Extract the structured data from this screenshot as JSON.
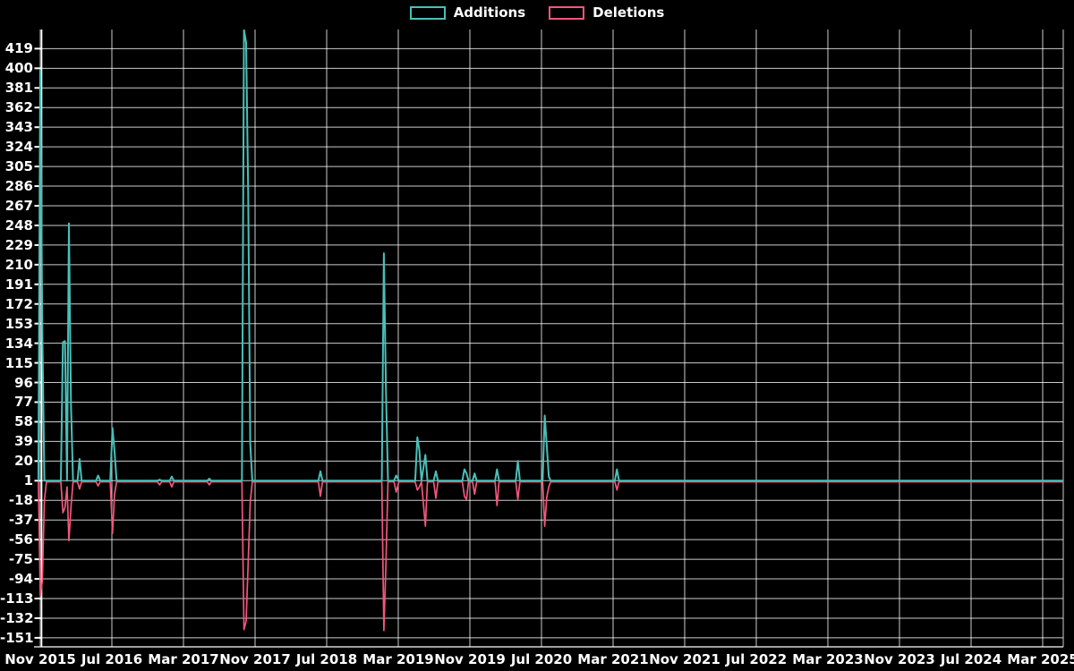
{
  "legend": {
    "items": [
      {
        "label": "Additions",
        "color": "#4abfb8"
      },
      {
        "label": "Deletions",
        "color": "#f2567c"
      }
    ]
  },
  "chart_data": {
    "type": "line",
    "title": "",
    "xlabel": "",
    "ylabel": "",
    "grid": true,
    "legend_position": "top-center",
    "background_color": "#000000",
    "gridline_color": "#ffffff",
    "baseline_value": 1,
    "ylim": [
      -151,
      437
    ],
    "x_range": [
      "2015-10-25",
      "2025-06-01"
    ],
    "y_ticks": [
      419,
      400,
      381,
      362,
      343,
      324,
      305,
      286,
      267,
      248,
      229,
      210,
      191,
      172,
      153,
      134,
      115,
      96,
      77,
      58,
      39,
      20,
      1,
      -18,
      -37,
      -56,
      -75,
      -94,
      -113,
      -132,
      -151
    ],
    "x_ticks": [
      "Nov 2015",
      "Jul 2016",
      "Mar 2017",
      "Nov 2017",
      "Jul 2018",
      "Mar 2019",
      "Nov 2019",
      "Jul 2020",
      "Mar 2021",
      "Nov 2021",
      "Jul 2022",
      "Mar 2023",
      "Nov 2023",
      "Jul 2024",
      "Mar 2025"
    ],
    "x_tick_interval_months": 8,
    "series": [
      {
        "name": "Additions",
        "color": "#4abfb8",
        "baseline": 1,
        "points": [
          {
            "date": "2015-10-25",
            "value": 1
          },
          {
            "date": "2015-11-01",
            "value": 398
          },
          {
            "date": "2015-11-08",
            "value": 144
          },
          {
            "date": "2015-11-15",
            "value": 1
          },
          {
            "date": "2016-01-10",
            "value": 1
          },
          {
            "date": "2016-01-17",
            "value": 135
          },
          {
            "date": "2016-01-24",
            "value": 136
          },
          {
            "date": "2016-01-31",
            "value": 1
          },
          {
            "date": "2016-02-07",
            "value": 250
          },
          {
            "date": "2016-02-14",
            "value": 75
          },
          {
            "date": "2016-02-21",
            "value": 1
          },
          {
            "date": "2016-03-06",
            "value": 1
          },
          {
            "date": "2016-03-13",
            "value": 22
          },
          {
            "date": "2016-03-20",
            "value": 1
          },
          {
            "date": "2016-05-08",
            "value": 1
          },
          {
            "date": "2016-05-15",
            "value": 6
          },
          {
            "date": "2016-05-22",
            "value": 1
          },
          {
            "date": "2016-06-26",
            "value": 1
          },
          {
            "date": "2016-07-03",
            "value": 52
          },
          {
            "date": "2016-07-10",
            "value": 29
          },
          {
            "date": "2016-07-17",
            "value": 1
          },
          {
            "date": "2016-12-04",
            "value": 1
          },
          {
            "date": "2016-12-11",
            "value": 2
          },
          {
            "date": "2016-12-18",
            "value": 1
          },
          {
            "date": "2017-01-15",
            "value": 1
          },
          {
            "date": "2017-01-22",
            "value": 5
          },
          {
            "date": "2017-01-29",
            "value": 1
          },
          {
            "date": "2017-05-21",
            "value": 1
          },
          {
            "date": "2017-05-28",
            "value": 3
          },
          {
            "date": "2017-06-04",
            "value": 1
          },
          {
            "date": "2017-09-17",
            "value": 1
          },
          {
            "date": "2017-09-24",
            "value": 437
          },
          {
            "date": "2017-10-01",
            "value": 425
          },
          {
            "date": "2017-10-08",
            "value": 280
          },
          {
            "date": "2017-10-15",
            "value": 37
          },
          {
            "date": "2017-10-22",
            "value": 1
          },
          {
            "date": "2018-06-03",
            "value": 1
          },
          {
            "date": "2018-06-10",
            "value": 10
          },
          {
            "date": "2018-06-17",
            "value": 1
          },
          {
            "date": "2019-01-06",
            "value": 1
          },
          {
            "date": "2019-01-13",
            "value": 221
          },
          {
            "date": "2019-01-20",
            "value": 90
          },
          {
            "date": "2019-01-27",
            "value": 1
          },
          {
            "date": "2019-02-17",
            "value": 1
          },
          {
            "date": "2019-02-24",
            "value": 6
          },
          {
            "date": "2019-03-03",
            "value": 1
          },
          {
            "date": "2019-04-28",
            "value": 1
          },
          {
            "date": "2019-05-05",
            "value": 43
          },
          {
            "date": "2019-05-12",
            "value": 30
          },
          {
            "date": "2019-05-19",
            "value": 1
          },
          {
            "date": "2019-06-02",
            "value": 26
          },
          {
            "date": "2019-06-09",
            "value": 1
          },
          {
            "date": "2019-06-30",
            "value": 1
          },
          {
            "date": "2019-07-07",
            "value": 10
          },
          {
            "date": "2019-07-14",
            "value": 1
          },
          {
            "date": "2019-10-06",
            "value": 1
          },
          {
            "date": "2019-10-13",
            "value": 12
          },
          {
            "date": "2019-10-20",
            "value": 8
          },
          {
            "date": "2019-10-27",
            "value": 1
          },
          {
            "date": "2019-11-10",
            "value": 1
          },
          {
            "date": "2019-11-17",
            "value": 8
          },
          {
            "date": "2019-11-24",
            "value": 1
          },
          {
            "date": "2020-01-26",
            "value": 1
          },
          {
            "date": "2020-02-02",
            "value": 12
          },
          {
            "date": "2020-02-09",
            "value": 1
          },
          {
            "date": "2020-04-05",
            "value": 1
          },
          {
            "date": "2020-04-12",
            "value": 20
          },
          {
            "date": "2020-04-19",
            "value": 1
          },
          {
            "date": "2020-07-05",
            "value": 1
          },
          {
            "date": "2020-07-12",
            "value": 64
          },
          {
            "date": "2020-07-19",
            "value": 35
          },
          {
            "date": "2020-07-26",
            "value": 5
          },
          {
            "date": "2020-08-02",
            "value": 1
          },
          {
            "date": "2021-03-07",
            "value": 1
          },
          {
            "date": "2021-03-14",
            "value": 12
          },
          {
            "date": "2021-03-21",
            "value": 1
          },
          {
            "date": "2025-06-01",
            "value": 1
          }
        ]
      },
      {
        "name": "Deletions",
        "color": "#f2567c",
        "baseline": 0,
        "points": [
          {
            "date": "2015-10-25",
            "value": 0
          },
          {
            "date": "2015-11-01",
            "value": -110
          },
          {
            "date": "2015-11-08",
            "value": -96
          },
          {
            "date": "2015-11-15",
            "value": -18
          },
          {
            "date": "2015-11-22",
            "value": 0
          },
          {
            "date": "2016-01-10",
            "value": 0
          },
          {
            "date": "2016-01-17",
            "value": -30
          },
          {
            "date": "2016-01-24",
            "value": -25
          },
          {
            "date": "2016-01-31",
            "value": -5
          },
          {
            "date": "2016-02-07",
            "value": -57
          },
          {
            "date": "2016-02-14",
            "value": -25
          },
          {
            "date": "2016-02-21",
            "value": 0
          },
          {
            "date": "2016-03-06",
            "value": 0
          },
          {
            "date": "2016-03-13",
            "value": -7
          },
          {
            "date": "2016-03-20",
            "value": 0
          },
          {
            "date": "2016-05-08",
            "value": 0
          },
          {
            "date": "2016-05-15",
            "value": -4
          },
          {
            "date": "2016-05-22",
            "value": 0
          },
          {
            "date": "2016-06-26",
            "value": 0
          },
          {
            "date": "2016-07-03",
            "value": -50
          },
          {
            "date": "2016-07-10",
            "value": -12
          },
          {
            "date": "2016-07-17",
            "value": 0
          },
          {
            "date": "2016-12-04",
            "value": 0
          },
          {
            "date": "2016-12-11",
            "value": -3
          },
          {
            "date": "2016-12-18",
            "value": 0
          },
          {
            "date": "2017-01-15",
            "value": 0
          },
          {
            "date": "2017-01-22",
            "value": -5
          },
          {
            "date": "2017-01-29",
            "value": 0
          },
          {
            "date": "2017-05-21",
            "value": 0
          },
          {
            "date": "2017-05-28",
            "value": -3
          },
          {
            "date": "2017-06-04",
            "value": 0
          },
          {
            "date": "2017-09-17",
            "value": 0
          },
          {
            "date": "2017-09-24",
            "value": -143
          },
          {
            "date": "2017-10-01",
            "value": -135
          },
          {
            "date": "2017-10-08",
            "value": -78
          },
          {
            "date": "2017-10-15",
            "value": -20
          },
          {
            "date": "2017-10-22",
            "value": 0
          },
          {
            "date": "2018-06-03",
            "value": 0
          },
          {
            "date": "2018-06-10",
            "value": -14
          },
          {
            "date": "2018-06-17",
            "value": 0
          },
          {
            "date": "2019-01-06",
            "value": 0
          },
          {
            "date": "2019-01-13",
            "value": -144
          },
          {
            "date": "2019-01-20",
            "value": -80
          },
          {
            "date": "2019-01-27",
            "value": 0
          },
          {
            "date": "2019-02-17",
            "value": 0
          },
          {
            "date": "2019-02-24",
            "value": -10
          },
          {
            "date": "2019-03-03",
            "value": 0
          },
          {
            "date": "2019-04-28",
            "value": 0
          },
          {
            "date": "2019-05-05",
            "value": -8
          },
          {
            "date": "2019-05-12",
            "value": -5
          },
          {
            "date": "2019-05-19",
            "value": 0
          },
          {
            "date": "2019-06-02",
            "value": -43
          },
          {
            "date": "2019-06-09",
            "value": 0
          },
          {
            "date": "2019-06-30",
            "value": 0
          },
          {
            "date": "2019-07-07",
            "value": -16
          },
          {
            "date": "2019-07-14",
            "value": 0
          },
          {
            "date": "2019-10-06",
            "value": 0
          },
          {
            "date": "2019-10-13",
            "value": -14
          },
          {
            "date": "2019-10-20",
            "value": -17
          },
          {
            "date": "2019-10-27",
            "value": 0
          },
          {
            "date": "2019-11-10",
            "value": 0
          },
          {
            "date": "2019-11-17",
            "value": -12
          },
          {
            "date": "2019-11-24",
            "value": 0
          },
          {
            "date": "2020-01-26",
            "value": 0
          },
          {
            "date": "2020-02-02",
            "value": -23
          },
          {
            "date": "2020-02-09",
            "value": 0
          },
          {
            "date": "2020-04-05",
            "value": 0
          },
          {
            "date": "2020-04-12",
            "value": -17
          },
          {
            "date": "2020-04-19",
            "value": 0
          },
          {
            "date": "2020-07-05",
            "value": 0
          },
          {
            "date": "2020-07-12",
            "value": -43
          },
          {
            "date": "2020-07-19",
            "value": -15
          },
          {
            "date": "2020-07-26",
            "value": -5
          },
          {
            "date": "2020-08-02",
            "value": 0
          },
          {
            "date": "2021-03-07",
            "value": 0
          },
          {
            "date": "2021-03-14",
            "value": -8
          },
          {
            "date": "2021-03-21",
            "value": 0
          },
          {
            "date": "2025-06-01",
            "value": 0
          }
        ]
      }
    ]
  }
}
